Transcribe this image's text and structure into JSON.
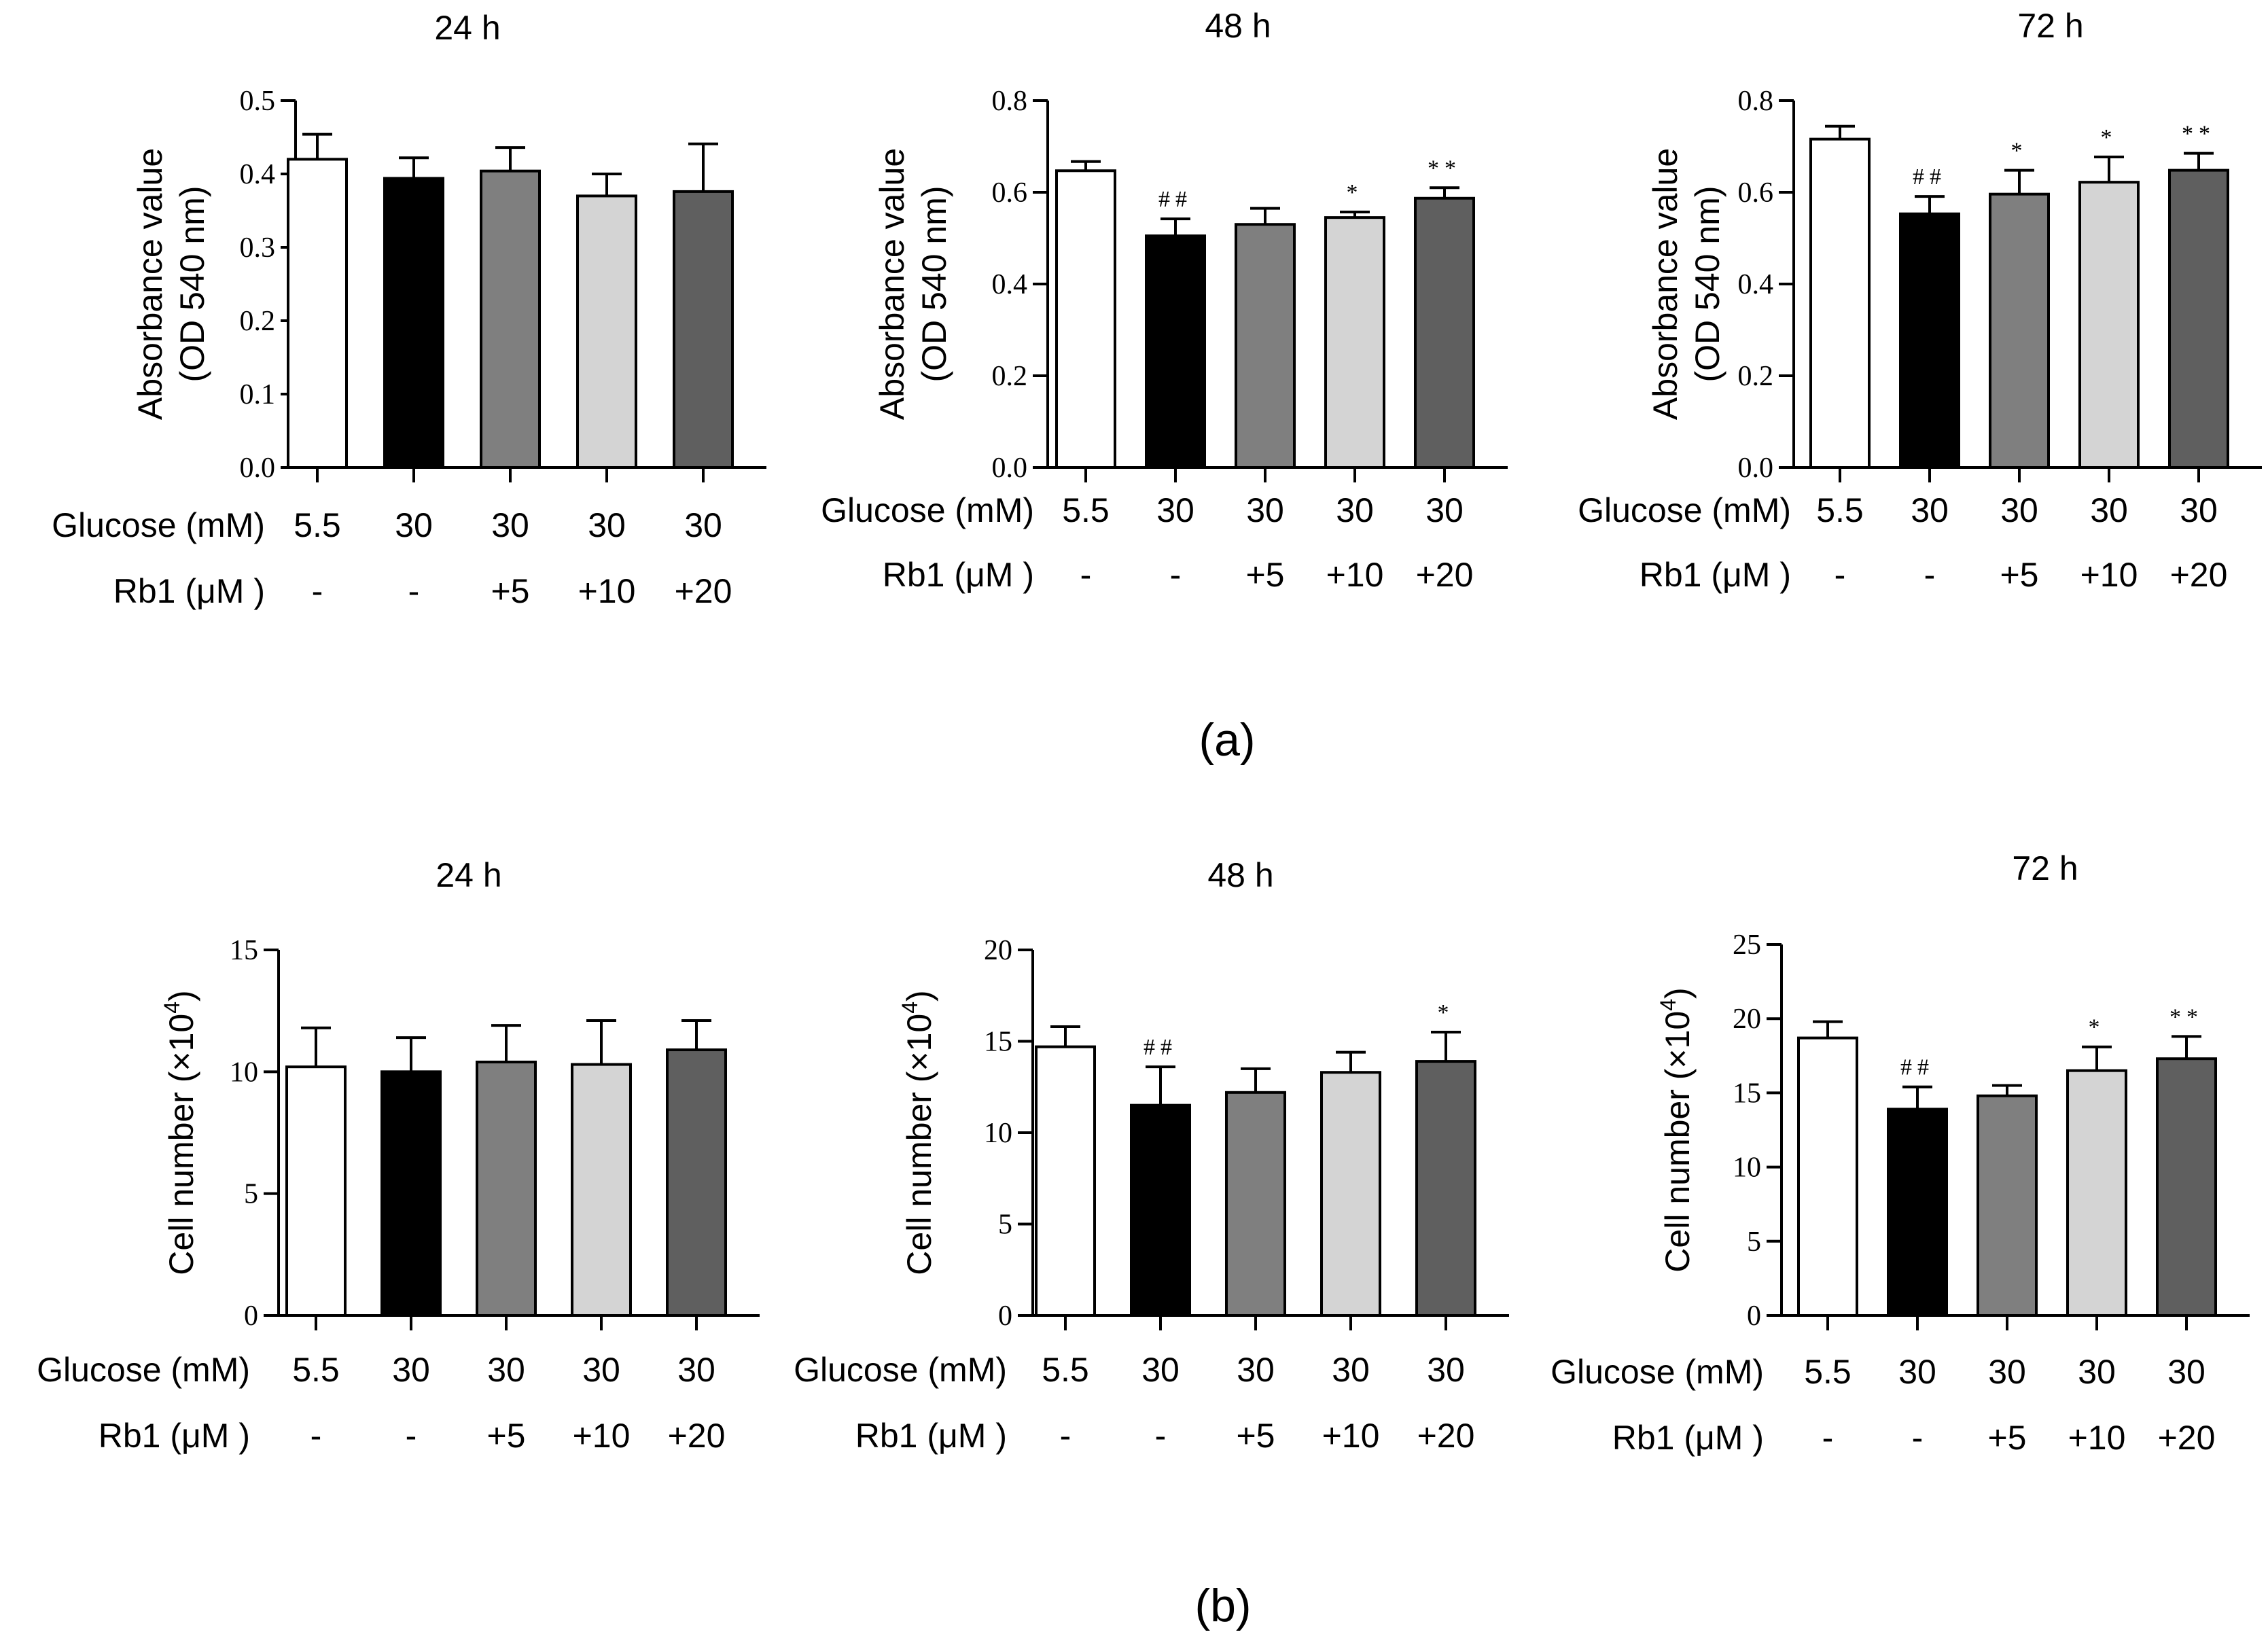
{
  "panel_labels": [
    "(a)",
    "(b)"
  ],
  "row_labels": {
    "glucose": "Glucose (mM)",
    "rb1": "Rb1 (μM )"
  },
  "glucose_values": [
    "5.5",
    "30",
    "30",
    "30",
    "30"
  ],
  "rb1_values": [
    "-",
    "-",
    "+5",
    "+10",
    "+20"
  ],
  "colors": {
    "bar_fills": [
      "#ffffff",
      "#000000",
      "#7f7f7f",
      "#d4d4d4",
      "#5f5f5f"
    ],
    "stroke": "#000000"
  },
  "chart_data": [
    {
      "type": "bar",
      "title": "24 h",
      "ylabel_lines": [
        "Absorbance value",
        "(OD 540 nm)"
      ],
      "ylabel_sup": "",
      "categories": [
        "5.5 / -",
        "30 / -",
        "30 / +5",
        "30 / +10",
        "30 / +20"
      ],
      "values": [
        0.42,
        0.394,
        0.404,
        0.37,
        0.376
      ],
      "errors": [
        0.034,
        0.028,
        0.032,
        0.03,
        0.065
      ],
      "annotations": [
        "",
        "",
        "",
        "",
        ""
      ],
      "ylim": [
        0,
        0.5
      ],
      "yticks": [
        "0.0",
        "0.1",
        "0.2",
        "0.3",
        "0.4",
        "0.5"
      ],
      "grid": false,
      "legend": "none"
    },
    {
      "type": "bar",
      "title": "48 h",
      "ylabel_lines": [
        "Absorbance value",
        "(OD 540 nm)"
      ],
      "ylabel_sup": "",
      "categories": [
        "5.5 / -",
        "30 / -",
        "30 / +5",
        "30 / +10",
        "30 / +20"
      ],
      "values": [
        0.647,
        0.505,
        0.53,
        0.545,
        0.587
      ],
      "errors": [
        0.02,
        0.037,
        0.035,
        0.012,
        0.023
      ],
      "annotations": [
        "",
        "##",
        "",
        "*",
        "**"
      ],
      "ylim": [
        0,
        0.8
      ],
      "yticks": [
        "0.0",
        "0.2",
        "0.4",
        "0.6",
        "0.8"
      ],
      "grid": false,
      "legend": "none"
    },
    {
      "type": "bar",
      "title": "72 h",
      "ylabel_lines": [
        "Absorbance value",
        "(OD 540 nm)"
      ],
      "ylabel_sup": "",
      "categories": [
        "5.5 / -",
        "30 / -",
        "30 / +5",
        "30 / +10",
        "30 / +20"
      ],
      "values": [
        0.716,
        0.553,
        0.596,
        0.622,
        0.648
      ],
      "errors": [
        0.028,
        0.038,
        0.052,
        0.055,
        0.037
      ],
      "annotations": [
        "",
        "##",
        "*",
        "*",
        "**"
      ],
      "ylim": [
        0,
        0.8
      ],
      "yticks": [
        "0.0",
        "0.2",
        "0.4",
        "0.6",
        "0.8"
      ],
      "grid": false,
      "legend": "none"
    },
    {
      "type": "bar",
      "title": "24 h",
      "ylabel_lines": [
        "Cell number (×10"
      ],
      "ylabel_sup": "4",
      "ylabel_tail": ")",
      "categories": [
        "5.5 / -",
        "30 / -",
        "30 / +5",
        "30 / +10",
        "30 / +20"
      ],
      "values": [
        10.2,
        10.0,
        10.4,
        10.3,
        10.9
      ],
      "errors": [
        1.6,
        1.4,
        1.5,
        1.8,
        1.2
      ],
      "annotations": [
        "",
        "",
        "",
        "",
        ""
      ],
      "ylim": [
        0,
        15
      ],
      "yticks": [
        "0",
        "5",
        "10",
        "15"
      ],
      "grid": false,
      "legend": "none"
    },
    {
      "type": "bar",
      "title": "48 h",
      "ylabel_lines": [
        "Cell number (×10"
      ],
      "ylabel_sup": "4",
      "ylabel_tail": ")",
      "categories": [
        "5.5 / -",
        "30 / -",
        "30 / +5",
        "30 / +10",
        "30 / +20"
      ],
      "values": [
        14.7,
        11.5,
        12.2,
        13.3,
        13.9
      ],
      "errors": [
        1.1,
        2.1,
        1.3,
        1.1,
        1.6
      ],
      "annotations": [
        "",
        "##",
        "",
        "",
        "*"
      ],
      "ylim": [
        0,
        20
      ],
      "yticks": [
        "0",
        "5",
        "10",
        "15",
        "20"
      ],
      "grid": false,
      "legend": "none"
    },
    {
      "type": "bar",
      "title": "72 h",
      "ylabel_lines": [
        "Cell number (×10"
      ],
      "ylabel_sup": "4",
      "ylabel_tail": ")",
      "categories": [
        "5.5 / -",
        "30 / -",
        "30 / +5",
        "30 / +10",
        "30 / +20"
      ],
      "values": [
        18.7,
        13.9,
        14.8,
        16.5,
        17.3
      ],
      "errors": [
        1.1,
        1.5,
        0.7,
        1.6,
        1.5
      ],
      "annotations": [
        "",
        "##",
        "",
        "*",
        "**"
      ],
      "ylim": [
        0,
        25
      ],
      "yticks": [
        "0",
        "5",
        "10",
        "15",
        "20",
        "25"
      ],
      "grid": false,
      "legend": "none"
    }
  ]
}
